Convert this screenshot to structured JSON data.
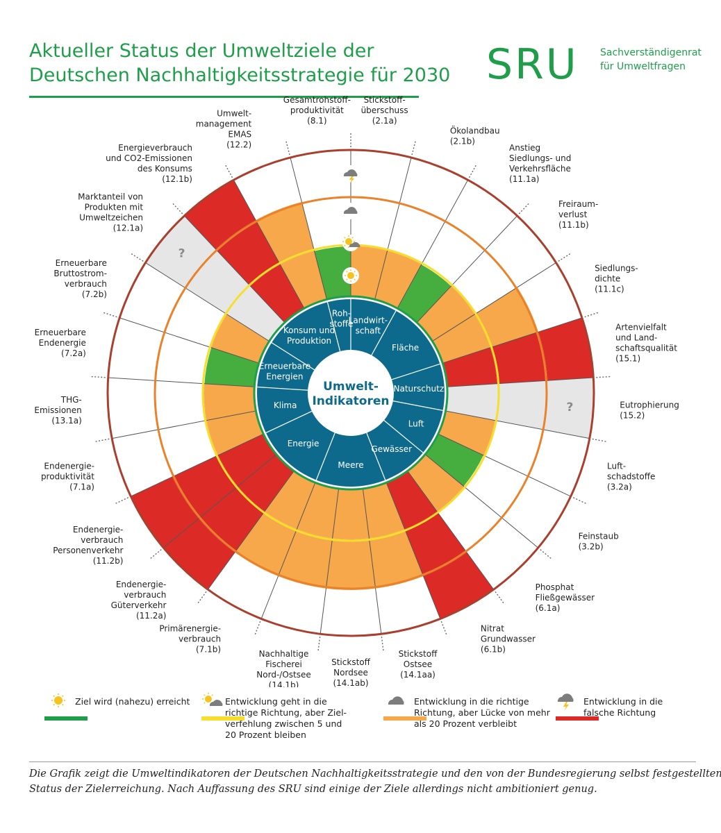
{
  "header": {
    "title_line1": "Aktueller Status der Umweltziele der",
    "title_line2": "Deutschen Nachhaltigkeitsstrategie für 2030",
    "logo_text": "SRU",
    "logo_line1": "Sachverständigenrat",
    "logo_line2": "für Umweltfragen"
  },
  "colors": {
    "green": "#46ae3e",
    "yellow_ring": "#f6de2c",
    "orange": "#f7a84a",
    "red": "#dc2b27",
    "grey": "#e6e6e6",
    "blue_center": "#0e6a8d",
    "outer_ring": "#a9402e",
    "inner_ring": "#1f9e4a",
    "title_green": "#1f9e4a"
  },
  "center": {
    "title_line1": "Umwelt-",
    "title_line2": "Indikatoren",
    "categories": [
      {
        "lines": [
          "Rohstoffe"
        ],
        "text": "Roh-\nstoffe"
      },
      {
        "lines": [
          "Landwirt-",
          "schaft"
        ]
      },
      {
        "lines": [
          "Fläche"
        ]
      },
      {
        "lines": [
          "Naturschutz"
        ]
      },
      {
        "lines": [
          "Luft"
        ]
      },
      {
        "lines": [
          "Gewässer"
        ]
      },
      {
        "lines": [
          "Meere"
        ]
      },
      {
        "lines": [
          "Energie"
        ]
      },
      {
        "lines": [
          "Klima"
        ]
      },
      {
        "lines": [
          "Erneuerbare",
          "Energien"
        ]
      },
      {
        "lines": [
          "Konsum und",
          "Produktion"
        ]
      }
    ],
    "rohstoffe_lines": [
      "Roh-",
      "stoffe"
    ]
  },
  "indicators": [
    {
      "lines": [
        "Stickstoff-",
        "überschuss",
        "(2.1a)"
      ],
      "status": "orange",
      "level": 2
    },
    {
      "lines": [
        "Ökolandbau",
        "(2.1b)"
      ],
      "status": "orange",
      "level": 2
    },
    {
      "lines": [
        "Anstieg",
        "Siedlungs- und",
        "Verkehrsfläche",
        "(11.1a)"
      ],
      "status": "green",
      "level": 1
    },
    {
      "lines": [
        "Freiraum-",
        "verlust",
        "(11.1b)"
      ],
      "status": "orange",
      "level": 2
    },
    {
      "lines": [
        "Siedlungs-",
        "dichte",
        "(11.1c)"
      ],
      "status": "orange",
      "level": 3
    },
    {
      "lines": [
        "Artenvielfalt",
        "und Land-",
        "schaftsqualität",
        "(15.1)"
      ],
      "status": "red",
      "level": 4
    },
    {
      "lines": [
        "Eutrophierung",
        "(15.2)"
      ],
      "status": "grey",
      "level": 4
    },
    {
      "lines": [
        "Luft-",
        "schadstoffe",
        "(3.2a)"
      ],
      "status": "orange",
      "level": 2
    },
    {
      "lines": [
        "Feinstaub",
        "(3.2b)"
      ],
      "status": "green",
      "level": 1
    },
    {
      "lines": [
        "Phosphat",
        "Fließgewässer",
        "(6.1a)"
      ],
      "status": "orange",
      "level": 2
    },
    {
      "lines": [
        "Nitrat",
        "Grundwasser",
        "(6.1b)"
      ],
      "status": "red",
      "level": 4
    },
    {
      "lines": [
        "Stickstoff",
        "Ostsee",
        "(14.1aa)"
      ],
      "status": "orange",
      "level": 3
    },
    {
      "lines": [
        "Stickstoff",
        "Nordsee",
        "(14.1ab)"
      ],
      "status": "orange",
      "level": 3
    },
    {
      "lines": [
        "Nachhaltige",
        "Fischerei",
        "Nord-/Ostsee",
        "(14.1b)"
      ],
      "status": "orange",
      "level": 3
    },
    {
      "lines": [
        "Primärenergie-",
        "verbrauch",
        "(7.1b)"
      ],
      "status": "orange",
      "level": 3
    },
    {
      "lines": [
        "Endenergie-",
        "verbrauch",
        "Güterverkehr",
        "(11.2a)"
      ],
      "status": "red",
      "level": 4
    },
    {
      "lines": [
        "Endenergie-",
        "verbrauch",
        "Personenverkehr",
        "(11.2b)"
      ],
      "status": "red",
      "level": 4
    },
    {
      "lines": [
        "Endenergie-",
        "produktivität",
        "(7.1a)"
      ],
      "status": "orange",
      "level": 2
    },
    {
      "lines": [
        "THG-",
        "Emissionen",
        "(13.1a)"
      ],
      "status": "orange",
      "level": 2
    },
    {
      "lines": [
        "Erneuerbare",
        "Endenergie",
        "(7.2a)"
      ],
      "status": "green",
      "level": 1
    },
    {
      "lines": [
        "Erneuerbare",
        "Bruttostrom-",
        "verbrauch",
        "(7.2b)"
      ],
      "status": "orange",
      "level": 2
    },
    {
      "lines": [
        "Marktanteil von",
        "Produkten mit",
        "Umweltzeichen",
        "(12.1a)"
      ],
      "status": "grey",
      "level": 4
    },
    {
      "lines": [
        "Energieverbrauch",
        "und CO2-Emissionen",
        "des Konsums",
        "(12.1b)"
      ],
      "status": "red",
      "level": 4
    },
    {
      "lines": [
        "Umwelt-",
        "management",
        "EMAS",
        "(12.2)"
      ],
      "status": "orange",
      "level": 3
    },
    {
      "lines": [
        "Gesamtrohstoff-",
        "produktivität",
        "(8.1)"
      ],
      "status": "green",
      "level": 1
    }
  ],
  "unknown_mark": "?",
  "legend": [
    {
      "lines": [
        "Ziel wird (nahezu) erreicht"
      ],
      "color": "#1f9e4a",
      "icon": "sun-icon"
    },
    {
      "lines": [
        "Entwicklung geht in die",
        "richtige Richtung, aber Ziel-",
        "verfehlung zwischen 5 und",
        "20 Prozent bleiben"
      ],
      "color": "#f6de2c",
      "icon": "sun-cloud-icon"
    },
    {
      "lines": [
        "Entwicklung in die richtige",
        "Richtung, aber Lücke von mehr",
        "als 20 Prozent verbleibt"
      ],
      "color": "#f7a84a",
      "icon": "cloud-icon"
    },
    {
      "lines": [
        "Entwicklung in die",
        "falsche Richtung"
      ],
      "color": "#dc2b27",
      "icon": "thunder-cloud-icon"
    }
  ],
  "caption": {
    "line1": "Die Grafik zeigt die Umweltindikatoren der Deutschen Nachhaltigkeitsstrategie und den von der Bundesregierung selbst festgestellten",
    "line2": "Status der Zielerreichung. Nach Auffassung des SRU sind einige der Ziele allerdings nicht ambitioniert genug."
  }
}
